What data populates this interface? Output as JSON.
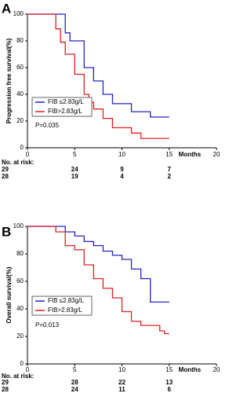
{
  "chart_data": [
    {
      "type": "line",
      "step": true,
      "panel_label": "A",
      "xlabel": "Months",
      "ylabel": "Progression free survival(%)",
      "xlim": [
        0,
        20
      ],
      "xticks": [
        0,
        5,
        10,
        15,
        20
      ],
      "ylim": [
        0,
        100
      ],
      "yticks": [
        0,
        20,
        40,
        60,
        80,
        100
      ],
      "legend": "center left",
      "annotation": "P=0.035",
      "series": [
        {
          "name": "FIB ≤2.83g/L",
          "color": "#2323c8",
          "x": [
            0,
            4,
            4.5,
            6,
            7,
            8,
            9,
            11,
            13,
            15
          ],
          "values": [
            100,
            86,
            80,
            60,
            50,
            40,
            33,
            27,
            23,
            23
          ]
        },
        {
          "name": "FIB>2.83g/L",
          "color": "#e02020",
          "x": [
            0,
            3,
            3.5,
            4,
            5,
            6,
            6.5,
            7,
            8,
            9,
            11,
            12,
            15
          ],
          "values": [
            100,
            89,
            79,
            70,
            55,
            40,
            34,
            29,
            22,
            15,
            11,
            7,
            7
          ]
        }
      ],
      "risk_table": {
        "title": "No. at risk:",
        "rows": [
          [
            "29",
            "24",
            "9",
            "7"
          ],
          [
            "28",
            "19",
            "4",
            "2"
          ]
        ]
      }
    },
    {
      "type": "line",
      "step": true,
      "panel_label": "B",
      "xlabel": "Months",
      "ylabel": "Overall survival(%)",
      "xlim": [
        0,
        20
      ],
      "xticks": [
        0,
        5,
        10,
        15,
        20
      ],
      "ylim": [
        0,
        100
      ],
      "yticks": [
        0,
        20,
        40,
        60,
        80,
        100
      ],
      "legend": "center left",
      "annotation": "P=0.013",
      "series": [
        {
          "name": "FIB ≤2.83g/L",
          "color": "#2323c8",
          "x": [
            0,
            4,
            5,
            6,
            7,
            8,
            9,
            10,
            11,
            12,
            13,
            15
          ],
          "values": [
            100,
            96,
            93,
            89,
            86,
            82,
            79,
            76,
            69,
            62,
            45,
            45
          ]
        },
        {
          "name": "FIB>2.83g/L",
          "color": "#e02020",
          "x": [
            0,
            3,
            4,
            5,
            6,
            7,
            8,
            9,
            10,
            11,
            12,
            14,
            14.5,
            15
          ],
          "values": [
            100,
            96,
            86,
            83,
            72,
            62,
            55,
            48,
            38,
            31,
            28,
            24,
            22,
            22
          ]
        }
      ],
      "risk_table": {
        "title": "No. at risk:",
        "rows": [
          [
            "29",
            "28",
            "22",
            "13"
          ],
          [
            "28",
            "24",
            "11",
            "6"
          ]
        ]
      }
    }
  ]
}
